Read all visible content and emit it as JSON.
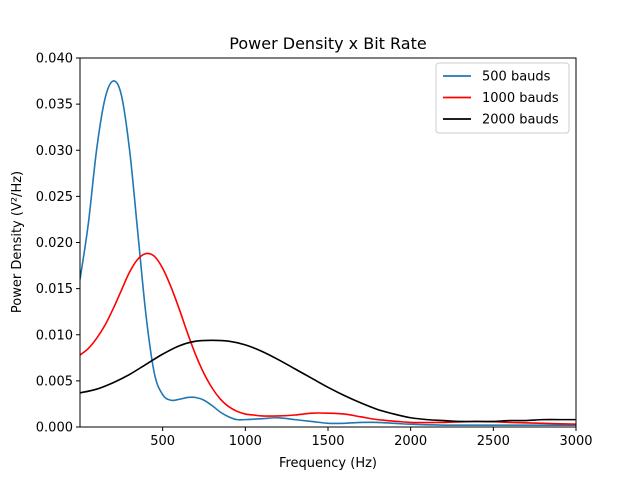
{
  "chart_data": {
    "type": "line",
    "title": "Power Density x Bit Rate",
    "xlabel": "Frequency (Hz)",
    "ylabel": "Power Density (V²/Hz)",
    "xlim": [
      0,
      3000
    ],
    "ylim": [
      0,
      0.04
    ],
    "grid": false,
    "legend_position": "top-right",
    "xticks": [
      500,
      1000,
      1500,
      2000,
      2500,
      3000
    ],
    "xtick_labels": [
      "500",
      "1000",
      "1500",
      "2000",
      "2500",
      "3000"
    ],
    "yticks": [
      0,
      0.005,
      0.01,
      0.015,
      0.02,
      0.025,
      0.03,
      0.035,
      0.04
    ],
    "ytick_labels": [
      "0.000",
      "0.005",
      "0.010",
      "0.015",
      "0.020",
      "0.025",
      "0.030",
      "0.035",
      "0.040"
    ],
    "series": [
      {
        "name": "500 bauds",
        "color": "#1f77b4",
        "x": [
          0,
          50,
          100,
          150,
          200,
          250,
          300,
          350,
          400,
          450,
          500,
          550,
          600,
          650,
          700,
          750,
          800,
          850,
          900,
          950,
          1000,
          1100,
          1200,
          1300,
          1400,
          1500,
          1600,
          1700,
          1800,
          1900,
          2000,
          2200,
          2400,
          2600,
          2800,
          3000
        ],
        "y": [
          0.016,
          0.022,
          0.03,
          0.0355,
          0.0375,
          0.036,
          0.03,
          0.021,
          0.012,
          0.0058,
          0.0035,
          0.0029,
          0.003,
          0.0032,
          0.0032,
          0.0029,
          0.0023,
          0.0016,
          0.0011,
          0.0008,
          0.0008,
          0.0009,
          0.001,
          0.0008,
          0.0006,
          0.0004,
          0.0004,
          0.0005,
          0.0005,
          0.0004,
          0.0003,
          0.0002,
          0.0002,
          0.0002,
          0.0002,
          0.0002
        ]
      },
      {
        "name": "1000 bauds",
        "color": "#ff0000",
        "x": [
          0,
          50,
          100,
          150,
          200,
          250,
          300,
          350,
          400,
          450,
          500,
          550,
          600,
          650,
          700,
          750,
          800,
          850,
          900,
          950,
          1000,
          1050,
          1100,
          1200,
          1300,
          1400,
          1500,
          1600,
          1700,
          1800,
          2000,
          2200,
          2400,
          2600,
          2800,
          3000
        ],
        "y": [
          0.0078,
          0.0085,
          0.0096,
          0.011,
          0.0128,
          0.0148,
          0.0168,
          0.0182,
          0.0188,
          0.0185,
          0.0172,
          0.0152,
          0.0128,
          0.0102,
          0.0078,
          0.0058,
          0.0042,
          0.003,
          0.0022,
          0.0017,
          0.0014,
          0.0013,
          0.0012,
          0.0012,
          0.0013,
          0.0015,
          0.0015,
          0.0014,
          0.0011,
          0.0008,
          0.0005,
          0.0005,
          0.0006,
          0.0005,
          0.0004,
          0.0003
        ]
      },
      {
        "name": "2000 bauds",
        "color": "#000000",
        "x": [
          0,
          100,
          200,
          300,
          400,
          500,
          600,
          700,
          800,
          900,
          1000,
          1100,
          1200,
          1300,
          1400,
          1500,
          1600,
          1700,
          1800,
          1900,
          2000,
          2100,
          2200,
          2300,
          2400,
          2500,
          2600,
          2700,
          2800,
          2900,
          3000
        ],
        "y": [
          0.0037,
          0.0041,
          0.0048,
          0.0057,
          0.0068,
          0.0079,
          0.0088,
          0.0093,
          0.0094,
          0.0093,
          0.0089,
          0.0082,
          0.0073,
          0.0063,
          0.0053,
          0.0043,
          0.0034,
          0.0026,
          0.0019,
          0.0014,
          0.001,
          0.0008,
          0.0007,
          0.0006,
          0.0006,
          0.0006,
          0.0007,
          0.0007,
          0.0008,
          0.0008,
          0.0008
        ]
      }
    ]
  }
}
